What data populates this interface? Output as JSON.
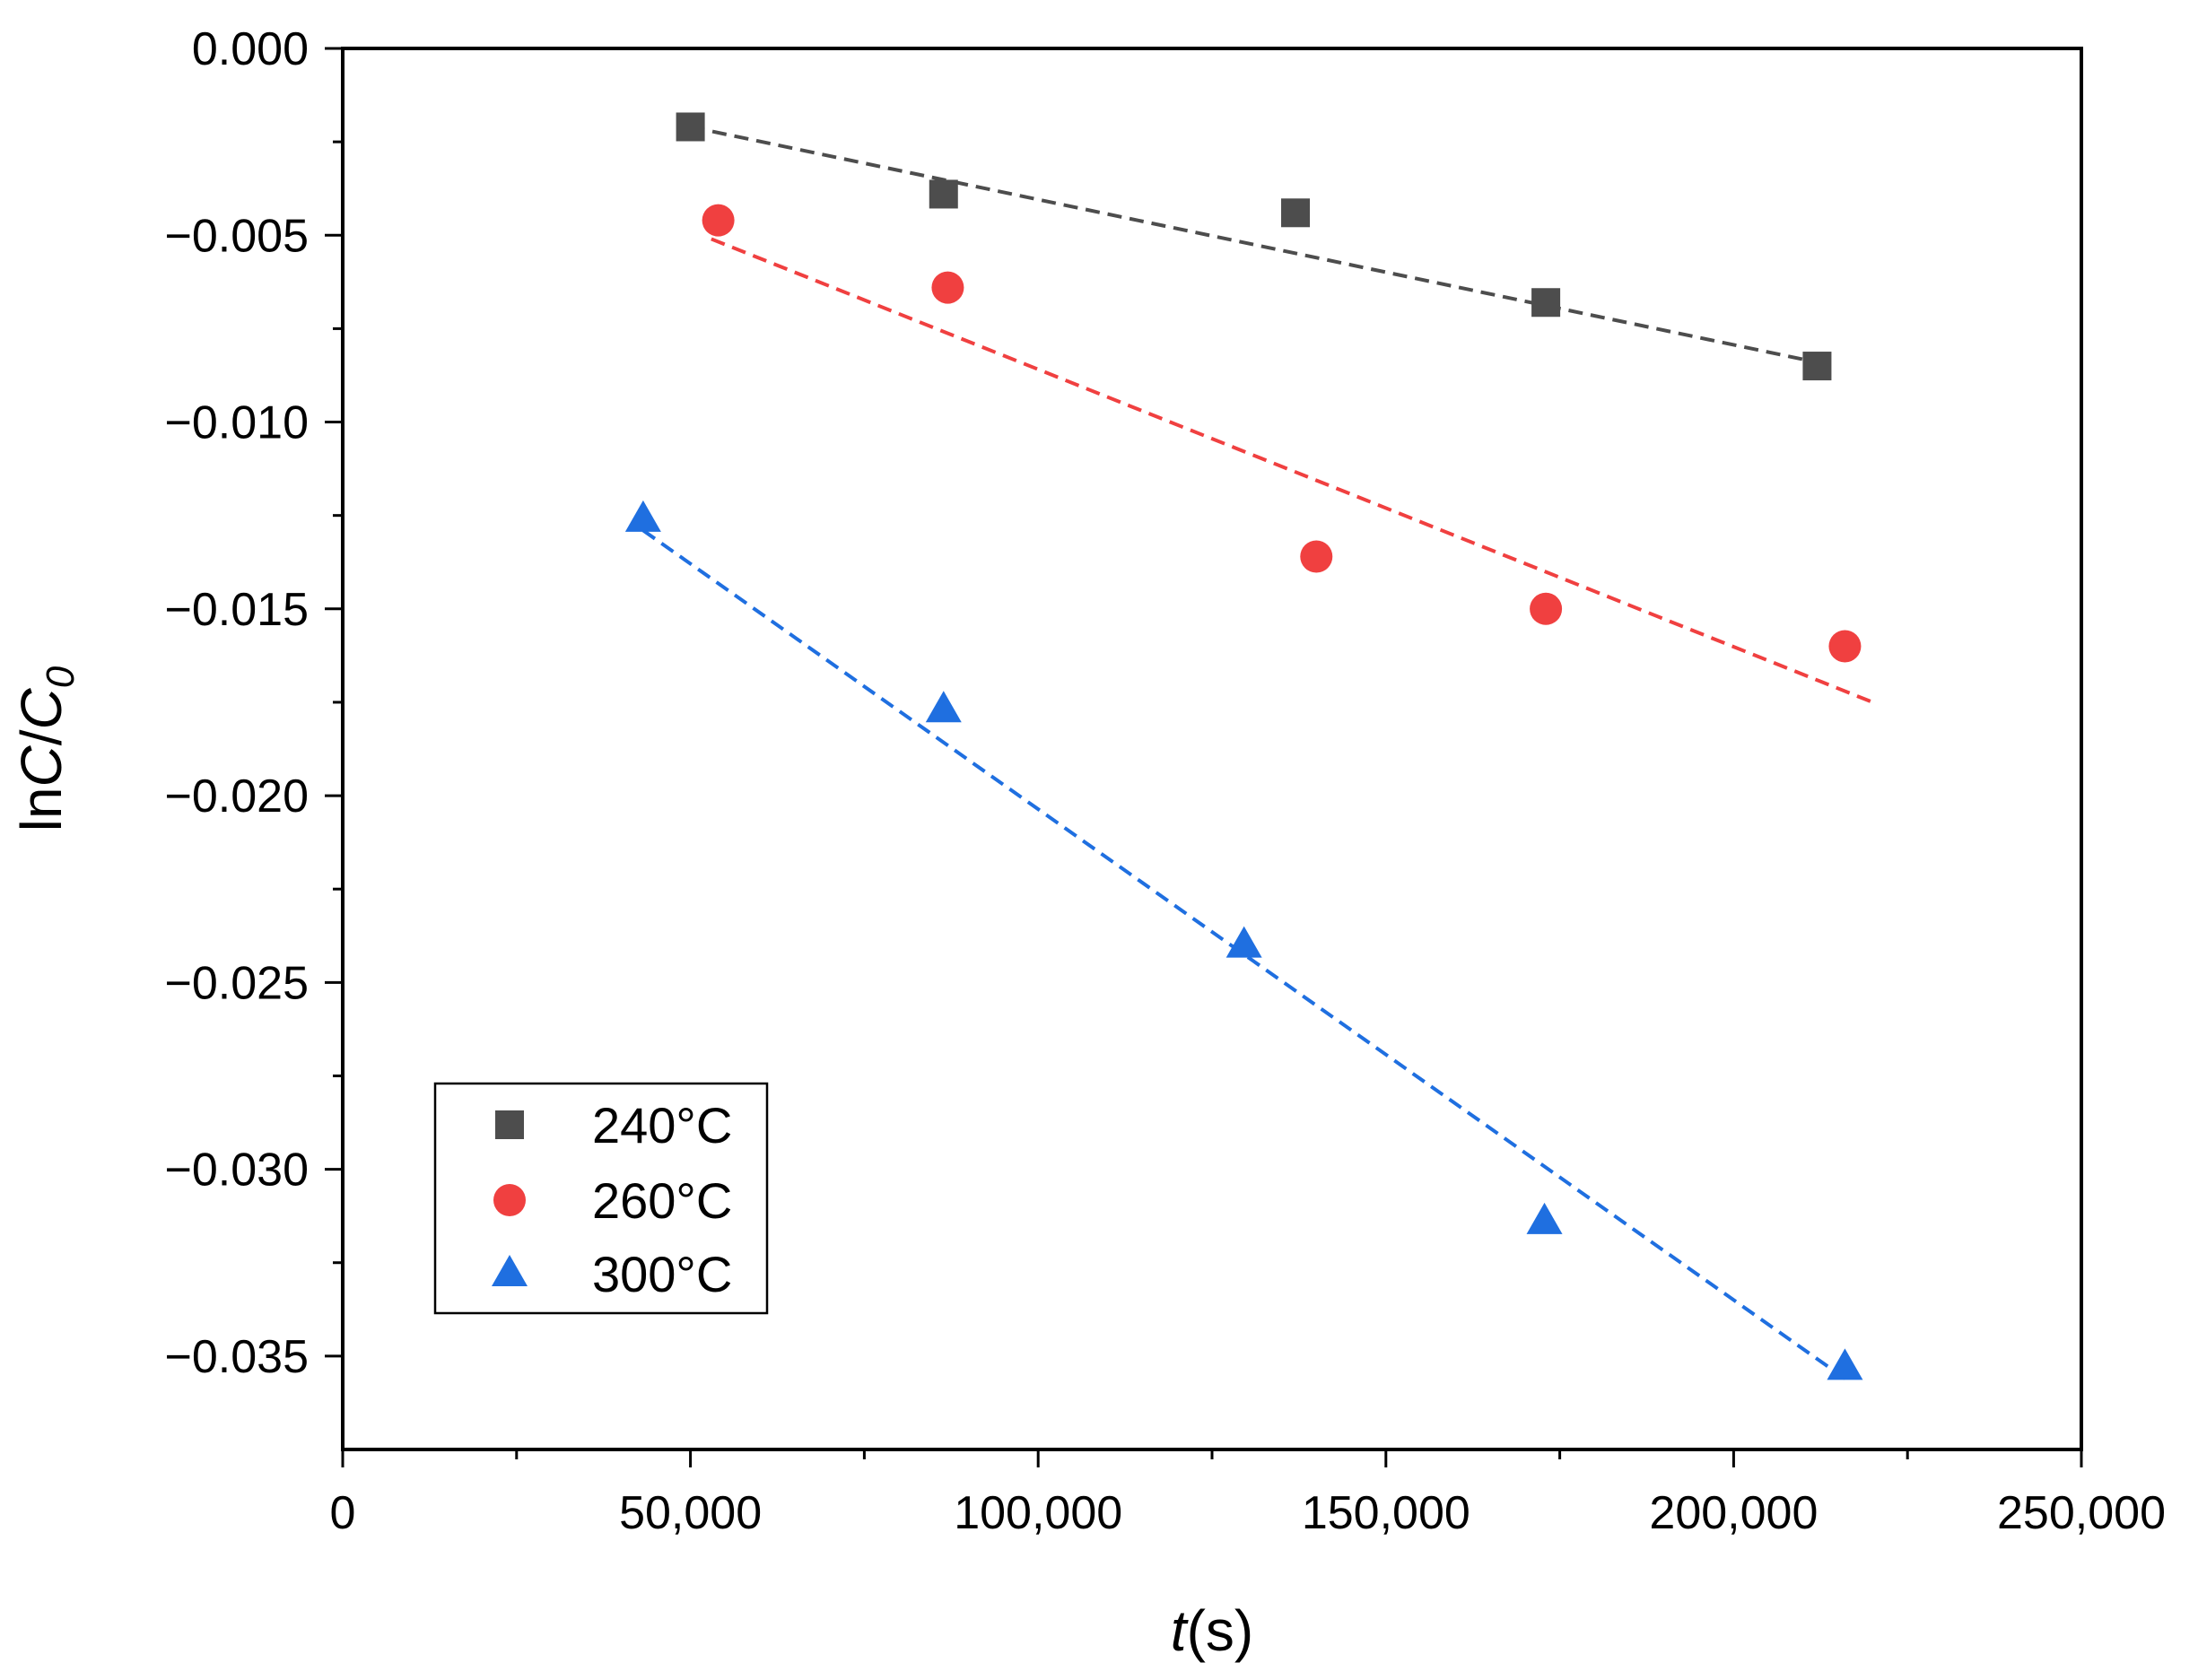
{
  "chart_data": {
    "type": "scatter",
    "title": "",
    "xlabel": {
      "italic": "t",
      "rest": "(s)"
    },
    "ylabel": {
      "prefix": "ln",
      "italic1": "C",
      "slash": "/",
      "italic2": "C",
      "sub": "0"
    },
    "xlim": [
      0,
      250000
    ],
    "ylim": [
      -0.0375,
      0.0
    ],
    "x_ticks": [
      0,
      50000,
      100000,
      150000,
      200000,
      250000
    ],
    "x_tick_labels": [
      "0",
      "50,000",
      "100,000",
      "150,000",
      "200,000",
      "250,000"
    ],
    "y_ticks": [
      0.0,
      -0.005,
      -0.01,
      -0.015,
      -0.02,
      -0.025,
      -0.03,
      -0.035
    ],
    "y_tick_labels": [
      "0.000",
      "−0.005",
      "−0.010",
      "−0.015",
      "−0.020",
      "−0.025",
      "−0.030",
      "−0.035"
    ],
    "legend_position": "bottom-left",
    "series": [
      {
        "name": "240°C",
        "marker": "square",
        "color": "#4d4d4d",
        "x": [
          50000,
          86400,
          137000,
          173000,
          212000
        ],
        "y": [
          -0.0021,
          -0.0039,
          -0.0044,
          -0.0068,
          -0.0085
        ],
        "fit": {
          "x": [
            50000,
            212000
          ],
          "y": [
            -0.0021,
            -0.0084
          ]
        }
      },
      {
        "name": "260°C",
        "marker": "circle",
        "color": "#f04040",
        "x": [
          54000,
          87000,
          140000,
          173000,
          216000
        ],
        "y": [
          -0.0046,
          -0.0064,
          -0.0136,
          -0.015,
          -0.016
        ],
        "fit": {
          "x": [
            53000,
            220000
          ],
          "y": [
            -0.0051,
            -0.0175
          ]
        }
      },
      {
        "name": "300°C",
        "marker": "triangle",
        "color": "#1f6fe0",
        "x": [
          43200,
          86400,
          129600,
          172800,
          216000
        ],
        "y": [
          -0.0126,
          -0.0177,
          -0.024,
          -0.0314,
          -0.0353
        ],
        "fit": {
          "x": [
            43200,
            216000
          ],
          "y": [
            -0.0129,
            -0.0356
          ]
        }
      }
    ]
  }
}
